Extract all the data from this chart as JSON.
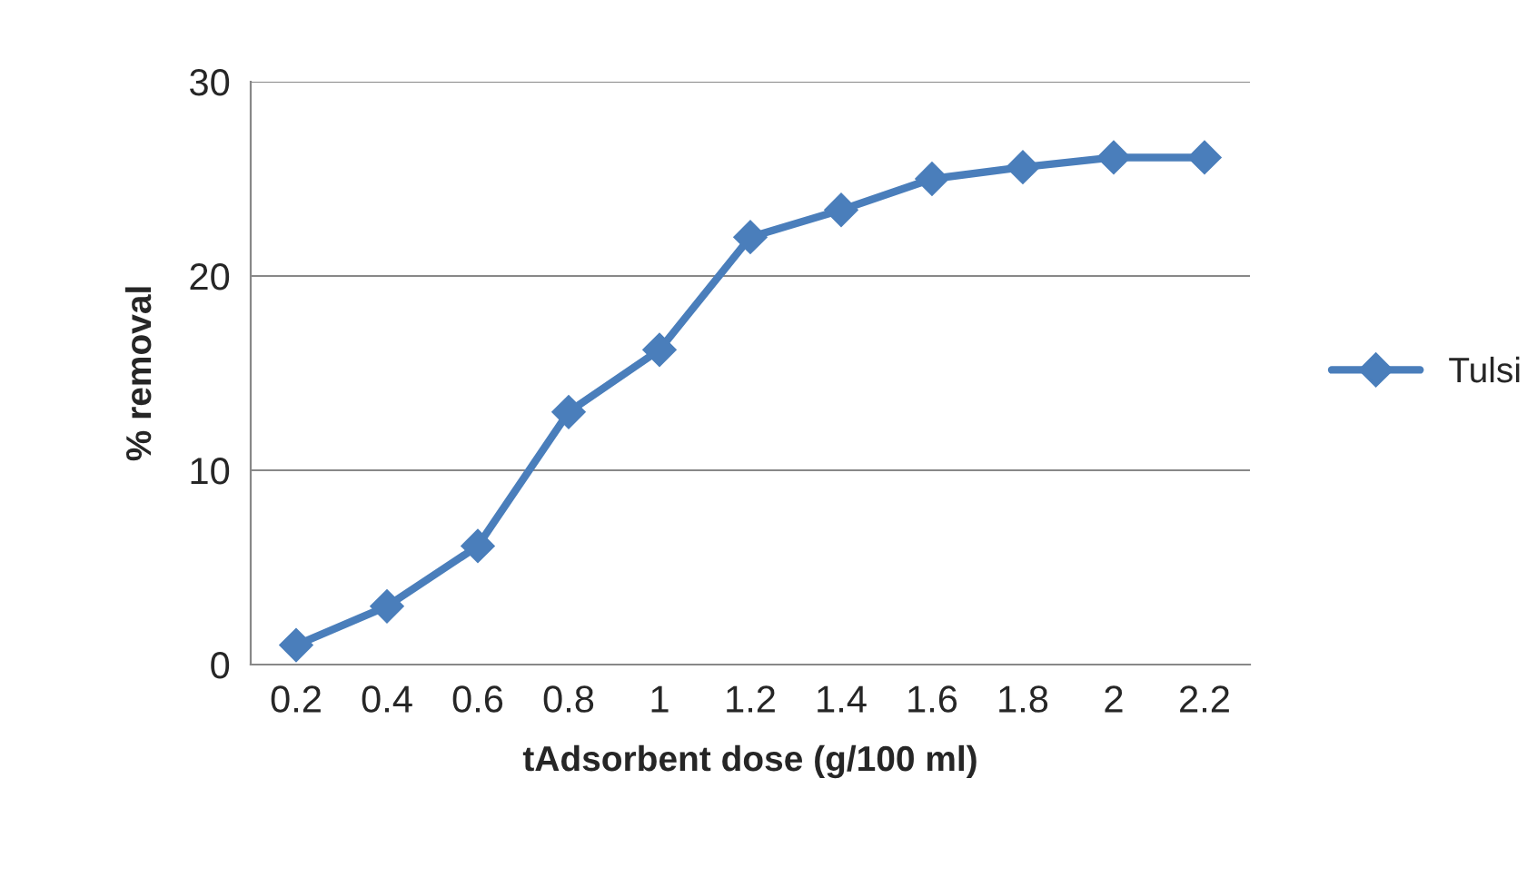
{
  "chart_data": {
    "type": "line",
    "xlabel": "tAdsorbent dose (g/100 ml)",
    "ylabel": "% removal",
    "categories": [
      "0.2",
      "0.4",
      "0.6",
      "0.8",
      "1",
      "1.2",
      "1.4",
      "1.6",
      "1.8",
      "2",
      "2.2"
    ],
    "series": [
      {
        "name": "Tulsi",
        "color": "#4a7ebb",
        "values": [
          1,
          3,
          6.1,
          13,
          16.2,
          22,
          23.4,
          25,
          25.6,
          26.1,
          26.1
        ]
      }
    ],
    "ylim": [
      0,
      30
    ],
    "yticks": [
      0,
      10,
      20,
      30
    ],
    "grid": "y",
    "legend": "right",
    "marker": "diamond",
    "line_style": "solid"
  }
}
